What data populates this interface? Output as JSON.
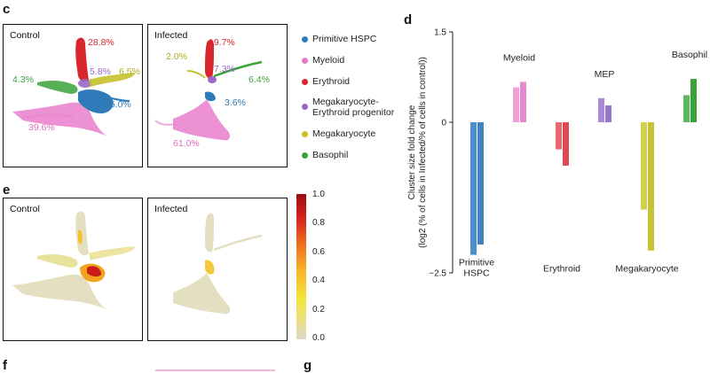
{
  "panels": {
    "c_letter": "c",
    "d_letter": "d",
    "e_letter": "e",
    "f_letter": "f",
    "g_letter": "g"
  },
  "panel_c": {
    "control_title": "Control",
    "infected_title": "Infected",
    "control_pcts": {
      "erythroid": "28.8%",
      "mep": "5.8%",
      "megakaryocyte": "6.5%",
      "basophil": "4.3%",
      "hspc": "15.0%",
      "myeloid": "39.6%"
    },
    "infected_pcts": {
      "erythroid": "19.7%",
      "megakaryocyte": "2.0%",
      "mep": "7.3%",
      "basophil": "6.4%",
      "hspc": "3.6%",
      "myeloid": "61.0%"
    }
  },
  "legend": [
    {
      "label": "Primitive HSPC",
      "color": "#2f7bb9"
    },
    {
      "label": "Myeloid",
      "color": "#e57cc8"
    },
    {
      "label": "Erythroid",
      "color": "#d9262c"
    },
    {
      "label": "Megakaryocyte-",
      "label2": "Erythroid progenitor",
      "color": "#9a67c4"
    },
    {
      "label": "Megakaryocyte",
      "color": "#c6c12b"
    },
    {
      "label": "Basophil",
      "color": "#3aa23a"
    }
  ],
  "panel_e": {
    "control_title": "Control",
    "infected_title": "Infected",
    "colorbar_ticks": [
      "1.0",
      "0.8",
      "0.6",
      "0.4",
      "0.2",
      "0.0"
    ]
  },
  "chart_data": {
    "type": "bar",
    "ylabel_line1": "Cluster size fold change",
    "ylabel_line2": "(log2 (% of cells in Infected/% of cells in control))",
    "ylim": [
      -2.5,
      1.5
    ],
    "yticks": [
      "1.5",
      "0",
      "−2.5"
    ],
    "ytick_values": [
      1.5,
      0,
      -2.5
    ],
    "groups": [
      {
        "name": "Primitive HSPC",
        "label_lines": [
          "Primitive",
          "HSPC"
        ],
        "label_pos": "bottom",
        "color": "#4a8fc9",
        "colorB": "#3f84be",
        "values": [
          -2.2,
          -2.03
        ]
      },
      {
        "name": "Myeloid",
        "label_lines": [
          "Myeloid"
        ],
        "label_pos": "top",
        "color": "#f0a0d8",
        "colorB": "#e58ad0",
        "values": [
          0.58,
          0.67
        ]
      },
      {
        "name": "Erythroid",
        "label_lines": [
          "Erythroid"
        ],
        "label_pos": "bottom",
        "color": "#e86a70",
        "colorB": "#df4a52",
        "values": [
          -0.45,
          -0.72
        ]
      },
      {
        "name": "MEP",
        "label_lines": [
          "MEP"
        ],
        "label_pos": "top",
        "color": "#a98ad6",
        "colorB": "#9578c9",
        "values": [
          0.4,
          0.28
        ]
      },
      {
        "name": "Megakaryocyte",
        "label_lines": [
          "Megakaryocyte"
        ],
        "label_pos": "bottom",
        "color": "#d3d04e",
        "colorB": "#c4c236",
        "values": [
          -1.45,
          -2.13
        ]
      },
      {
        "name": "Basophil",
        "label_lines": [
          "Basophil"
        ],
        "label_pos": "top",
        "color": "#5eb85e",
        "colorB": "#3aa23a",
        "values": [
          0.45,
          0.72
        ]
      }
    ]
  }
}
